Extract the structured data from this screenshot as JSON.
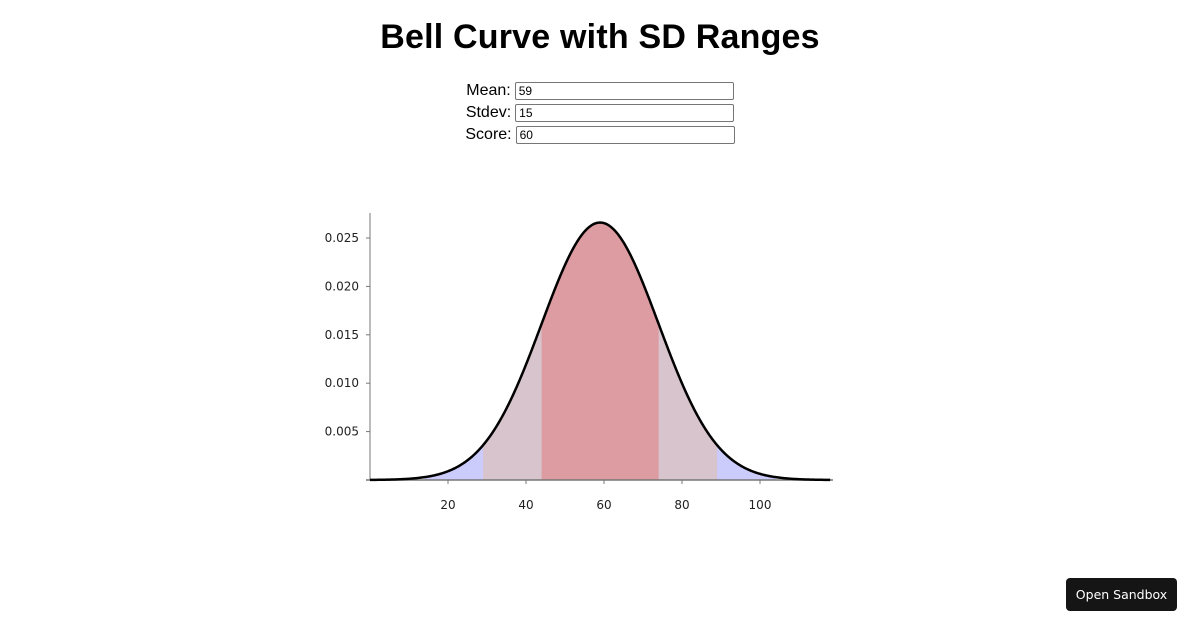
{
  "page": {
    "title": "Bell Curve with SD Ranges"
  },
  "form": {
    "mean": {
      "label": "Mean:",
      "value": "59"
    },
    "stdev": {
      "label": "Stdev:",
      "value": "15"
    },
    "score": {
      "label": "Score:",
      "value": "60"
    }
  },
  "button": {
    "open_sandbox_label": "Open Sandbox"
  },
  "colors": {
    "curve": "#000000",
    "sd1_fill": "#dd9ba2",
    "sd2_fill": "#d7c4cc",
    "sd3_fill": "#cbcbfc",
    "axis": "#777777"
  },
  "chart_data": {
    "type": "area",
    "title": "Bell Curve with SD Ranges",
    "xlabel": "",
    "ylabel": "",
    "distribution": {
      "kind": "normal",
      "mean": 59,
      "stdev": 15
    },
    "xlim": [
      0,
      118
    ],
    "ylim": [
      0,
      0.0275
    ],
    "x_ticks": [
      20,
      40,
      60,
      80,
      100
    ],
    "x_tick_labels": [
      "20",
      "40",
      "60",
      "80",
      "100"
    ],
    "y_ticks": [
      0.005,
      0.01,
      0.015,
      0.02,
      0.025
    ],
    "y_tick_labels": [
      "0.005",
      "0.010",
      "0.015",
      "0.020",
      "0.025"
    ],
    "peak": {
      "x": 59,
      "y": 0.0266
    },
    "bands": [
      {
        "name": "±1 SD",
        "from": 44,
        "to": 74,
        "color": "#dd9ba2"
      },
      {
        "name": "±2 SD",
        "from": 29,
        "to": 89,
        "color": "#d7c4cc"
      },
      {
        "name": "±3 SD",
        "from": 14,
        "to": 104,
        "color": "#cbcbfc"
      }
    ],
    "grid": false,
    "legend": null
  }
}
